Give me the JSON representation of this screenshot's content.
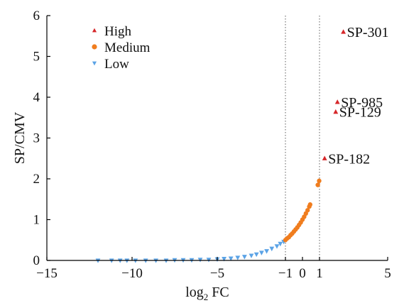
{
  "chart_data": {
    "type": "scatter",
    "xlabel_main": "log",
    "xlabel_sub": "2",
    "xlabel_rest": " FC",
    "ylabel": "SP/CMV",
    "xlim": [
      -15,
      5
    ],
    "ylim": [
      0,
      6
    ],
    "x_ticks": [
      {
        "value": -15,
        "label": "−15"
      },
      {
        "value": -10,
        "label": "−10"
      },
      {
        "value": -5,
        "label": "−5"
      },
      {
        "value": -1,
        "label": "−1"
      },
      {
        "value": 0,
        "label": "0"
      },
      {
        "value": 1,
        "label": "1"
      },
      {
        "value": 5,
        "label": "5"
      }
    ],
    "y_ticks": [
      {
        "value": 0,
        "label": "0"
      },
      {
        "value": 1,
        "label": "1"
      },
      {
        "value": 2,
        "label": "2"
      },
      {
        "value": 3,
        "label": "3"
      },
      {
        "value": 4,
        "label": "4"
      },
      {
        "value": 5,
        "label": "5"
      },
      {
        "value": 6,
        "label": "6"
      }
    ],
    "vlines": [
      -1,
      1
    ],
    "grid": false,
    "legend_position": "top-left",
    "series": [
      {
        "name": "High",
        "marker": "triangle-up",
        "color": "#d6272a",
        "points": [
          {
            "x": 2.4,
            "y": 5.6
          },
          {
            "x": 2.05,
            "y": 3.88
          },
          {
            "x": 1.95,
            "y": 3.64
          },
          {
            "x": 1.3,
            "y": 2.5
          }
        ]
      },
      {
        "name": "Medium",
        "marker": "circle",
        "color": "#f07d1e",
        "points": [
          {
            "x": -1.0,
            "y": 0.5
          },
          {
            "x": -0.9,
            "y": 0.54
          },
          {
            "x": -0.8,
            "y": 0.57
          },
          {
            "x": -0.7,
            "y": 0.62
          },
          {
            "x": -0.6,
            "y": 0.66
          },
          {
            "x": -0.5,
            "y": 0.71
          },
          {
            "x": -0.4,
            "y": 0.76
          },
          {
            "x": -0.3,
            "y": 0.81
          },
          {
            "x": -0.2,
            "y": 0.87
          },
          {
            "x": -0.1,
            "y": 0.93
          },
          {
            "x": 0.0,
            "y": 1.0
          },
          {
            "x": 0.1,
            "y": 1.07
          },
          {
            "x": 0.2,
            "y": 1.15
          },
          {
            "x": 0.3,
            "y": 1.23
          },
          {
            "x": 0.4,
            "y": 1.32
          },
          {
            "x": 0.45,
            "y": 1.37
          },
          {
            "x": 0.9,
            "y": 1.85
          },
          {
            "x": 0.98,
            "y": 1.95
          }
        ]
      },
      {
        "name": "Low",
        "marker": "triangle-down",
        "color": "#5ba3e6",
        "points": [
          {
            "x": -12.0,
            "y": 0.0
          },
          {
            "x": -11.2,
            "y": 0.0
          },
          {
            "x": -10.7,
            "y": 0.0
          },
          {
            "x": -10.3,
            "y": 0.0
          },
          {
            "x": -9.8,
            "y": 0.0
          },
          {
            "x": -9.2,
            "y": 0.0
          },
          {
            "x": -8.6,
            "y": 0.0
          },
          {
            "x": -8.0,
            "y": 0.0
          },
          {
            "x": -7.5,
            "y": 0.01
          },
          {
            "x": -7.0,
            "y": 0.01
          },
          {
            "x": -6.5,
            "y": 0.01
          },
          {
            "x": -6.0,
            "y": 0.02
          },
          {
            "x": -5.5,
            "y": 0.02
          },
          {
            "x": -5.0,
            "y": 0.03
          },
          {
            "x": -4.6,
            "y": 0.04
          },
          {
            "x": -4.2,
            "y": 0.05
          },
          {
            "x": -3.8,
            "y": 0.07
          },
          {
            "x": -3.4,
            "y": 0.09
          },
          {
            "x": -3.0,
            "y": 0.12
          },
          {
            "x": -2.7,
            "y": 0.15
          },
          {
            "x": -2.4,
            "y": 0.19
          },
          {
            "x": -2.1,
            "y": 0.23
          },
          {
            "x": -1.8,
            "y": 0.29
          },
          {
            "x": -1.5,
            "y": 0.35
          },
          {
            "x": -1.3,
            "y": 0.41
          },
          {
            "x": -1.1,
            "y": 0.46
          }
        ]
      }
    ],
    "annotations": [
      {
        "text": "SP-301",
        "x": 2.4,
        "y": 5.6
      },
      {
        "text": "SP-985",
        "x": 2.05,
        "y": 3.88
      },
      {
        "text": "SP-129",
        "x": 1.95,
        "y": 3.64
      },
      {
        "text": "SP-182",
        "x": 1.3,
        "y": 2.5
      }
    ]
  }
}
